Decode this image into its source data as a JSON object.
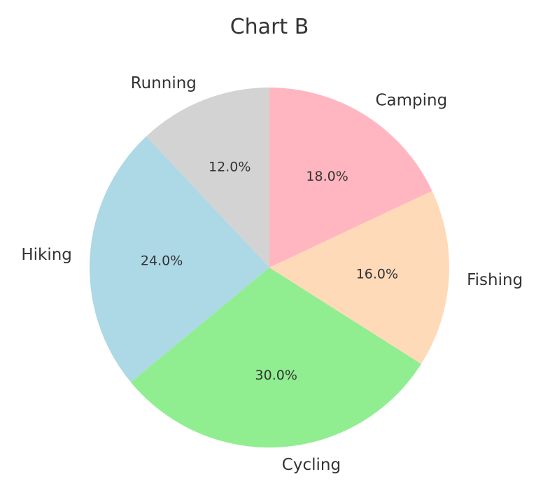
{
  "chart_data": {
    "type": "pie",
    "title": "Chart B",
    "start_angle_deg": 90,
    "direction": "counterclockwise",
    "slices": [
      {
        "label": "Running",
        "value": 12.0,
        "pct_text": "12.0%",
        "color": "#d3d3d3"
      },
      {
        "label": "Hiking",
        "value": 24.0,
        "pct_text": "24.0%",
        "color": "#add8e6"
      },
      {
        "label": "Cycling",
        "value": 30.0,
        "pct_text": "30.0%",
        "color": "#90ee90"
      },
      {
        "label": "Fishing",
        "value": 16.0,
        "pct_text": "16.0%",
        "color": "#ffdab9"
      },
      {
        "label": "Camping",
        "value": 18.0,
        "pct_text": "18.0%",
        "color": "#ffb6c1"
      }
    ]
  }
}
